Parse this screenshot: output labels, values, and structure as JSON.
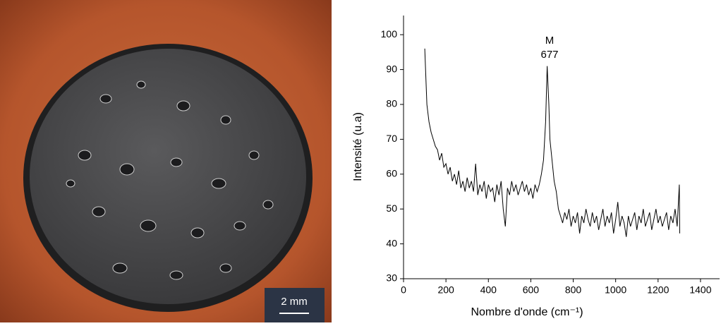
{
  "chart_data": {
    "type": "line",
    "xlabel": "Nombre d'onde (cm⁻¹)",
    "ylabel": "Intensité (u.a)",
    "annotations": [
      "M",
      "677"
    ],
    "x": [
      100,
      110,
      120,
      130,
      140,
      150,
      160,
      170,
      180,
      190,
      200,
      210,
      220,
      230,
      240,
      250,
      260,
      270,
      280,
      290,
      300,
      310,
      320,
      330,
      340,
      350,
      360,
      370,
      380,
      390,
      400,
      410,
      420,
      430,
      440,
      450,
      460,
      470,
      480,
      490,
      500,
      510,
      520,
      530,
      540,
      550,
      560,
      570,
      580,
      590,
      600,
      610,
      620,
      630,
      640,
      650,
      660,
      670,
      677,
      685,
      690,
      700,
      710,
      720,
      730,
      740,
      750,
      760,
      770,
      780,
      790,
      800,
      810,
      820,
      830,
      840,
      850,
      860,
      870,
      880,
      890,
      900,
      910,
      920,
      930,
      940,
      950,
      960,
      970,
      980,
      990,
      1000,
      1010,
      1020,
      1030,
      1040,
      1050,
      1060,
      1070,
      1080,
      1090,
      1100,
      1110,
      1120,
      1130,
      1140,
      1150,
      1160,
      1170,
      1180,
      1190,
      1200,
      1210,
      1220,
      1230,
      1240,
      1250,
      1260,
      1270,
      1280,
      1290,
      1300,
      1302
    ],
    "series": [
      {
        "color": "#000000",
        "values": [
          96,
          80,
          75,
          72,
          70,
          68,
          67,
          64,
          66,
          62,
          63,
          60,
          62,
          58,
          60,
          57,
          61,
          56,
          58,
          55,
          59,
          56,
          58,
          55,
          63,
          54,
          57,
          55,
          58,
          53,
          57,
          55,
          56,
          52,
          57,
          54,
          58,
          50,
          45,
          56,
          54,
          58,
          55,
          57,
          54,
          56,
          58,
          55,
          57,
          54,
          56,
          53,
          57,
          55,
          57,
          60,
          64,
          75,
          91,
          80,
          70,
          64,
          58,
          55,
          50,
          48,
          46,
          49,
          47,
          50,
          45,
          48,
          46,
          49,
          43,
          48,
          46,
          50,
          47,
          45,
          49,
          46,
          48,
          44,
          47,
          50,
          45,
          48,
          46,
          49,
          43,
          47,
          52,
          45,
          48,
          46,
          42,
          48,
          45,
          47,
          49,
          44,
          48,
          46,
          50,
          45,
          47,
          49,
          44,
          47,
          50,
          46,
          48,
          45,
          47,
          49,
          44,
          48,
          46,
          50,
          45,
          57,
          43
        ]
      }
    ],
    "xlim": [
      0,
      1490
    ],
    "ylim": [
      30,
      105.5
    ],
    "xticks": [
      0,
      200,
      400,
      600,
      800,
      1000,
      1200,
      1400
    ],
    "yticks": [
      30,
      40,
      50,
      60,
      70,
      80,
      90,
      100
    ]
  },
  "image": {
    "scale_bar": "2 mm"
  }
}
